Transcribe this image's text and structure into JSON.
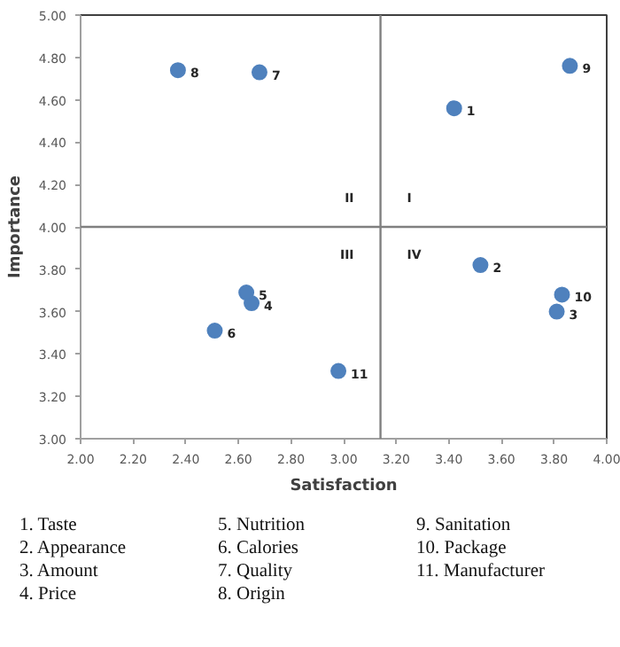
{
  "chart_data": {
    "type": "scatter",
    "xlabel": "Satisfaction",
    "ylabel": "Importance",
    "x": [
      3.42,
      3.52,
      3.81,
      2.65,
      2.63,
      2.51,
      2.68,
      2.37,
      3.86,
      3.83,
      2.98
    ],
    "series": [
      {
        "color": "#4f81bd",
        "values": [
          4.56,
          3.82,
          3.6,
          3.64,
          3.69,
          3.51,
          4.73,
          4.74,
          4.76,
          3.68,
          3.32
        ]
      }
    ],
    "marker": "circle",
    "xlim": [
      2.0,
      4.0
    ],
    "ylim": [
      3.0,
      5.0
    ],
    "xticks": [
      {
        "value": 2.0,
        "label": "2.00"
      },
      {
        "value": 2.2,
        "label": "2.20"
      },
      {
        "value": 2.4,
        "label": "2.40"
      },
      {
        "value": 2.6,
        "label": "2.60"
      },
      {
        "value": 2.8,
        "label": "2.80"
      },
      {
        "value": 3.0,
        "label": "3.00"
      },
      {
        "value": 3.2,
        "label": "3.20"
      },
      {
        "value": 3.4,
        "label": "3.40"
      },
      {
        "value": 3.6,
        "label": "3.60"
      },
      {
        "value": 3.8,
        "label": "3.80"
      },
      {
        "value": 4.0,
        "label": "4.00"
      }
    ],
    "yticks": [
      {
        "value": 3.0,
        "label": "3.00"
      },
      {
        "value": 3.2,
        "label": "3.20"
      },
      {
        "value": 3.4,
        "label": "3.40"
      },
      {
        "value": 3.6,
        "label": "3.60"
      },
      {
        "value": 3.8,
        "label": "3.80"
      },
      {
        "value": 4.0,
        "label": "4.00"
      },
      {
        "value": 4.2,
        "label": "4.20"
      },
      {
        "value": 4.4,
        "label": "4.40"
      },
      {
        "value": 4.6,
        "label": "4.60"
      },
      {
        "value": 4.8,
        "label": "4.80"
      },
      {
        "value": 5.0,
        "label": "5.00"
      }
    ],
    "grid": false,
    "ref_lines": [
      {
        "axis": "x",
        "value": 3.14,
        "color": "#808080"
      },
      {
        "axis": "y",
        "value": 4.0,
        "color": "#808080"
      }
    ],
    "annotations": [
      {
        "text": "1",
        "x": 3.42,
        "y": 4.56
      },
      {
        "text": "2",
        "x": 3.52,
        "y": 3.82
      },
      {
        "text": "3",
        "x": 3.81,
        "y": 3.6
      },
      {
        "text": "4",
        "x": 2.65,
        "y": 3.64
      },
      {
        "text": "5",
        "x": 2.63,
        "y": 3.69
      },
      {
        "text": "6",
        "x": 2.51,
        "y": 3.51
      },
      {
        "text": "7",
        "x": 2.68,
        "y": 4.73
      },
      {
        "text": "8",
        "x": 2.37,
        "y": 4.74
      },
      {
        "text": "9",
        "x": 3.86,
        "y": 4.76
      },
      {
        "text": "10",
        "x": 3.83,
        "y": 3.68
      },
      {
        "text": "11",
        "x": 2.98,
        "y": 3.32
      },
      "II",
      "I",
      "III",
      "IV",
      "1.  Taste",
      "2.  Appearance",
      "3.  Amount",
      "4.  Price",
      "5.  Nutrition",
      "6.  Calories",
      "7.  Quality",
      "8.  Origin",
      "9.  Sanitation",
      "10.  Package",
      "11.  Manufacturer"
    ]
  }
}
